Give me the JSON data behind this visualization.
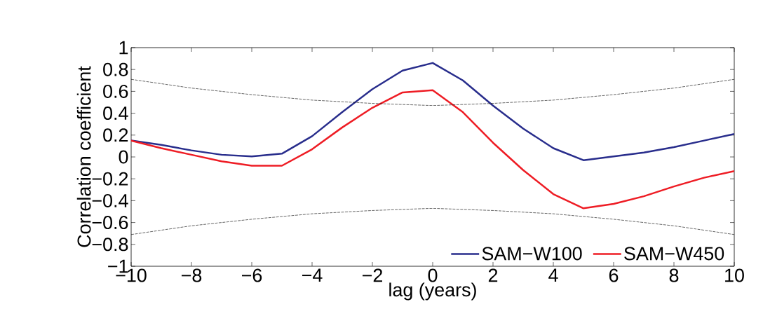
{
  "chart_data": {
    "type": "line",
    "xlabel": "lag (years)",
    "ylabel": "Correlation coefficient",
    "x": [
      -10,
      -9,
      -8,
      -7,
      -6,
      -5,
      -4,
      -3,
      -2,
      -1,
      0,
      1,
      2,
      3,
      4,
      5,
      6,
      7,
      8,
      9,
      10
    ],
    "series": [
      {
        "name": "SAM−W100",
        "color": "#282d8c",
        "values": [
          0.15,
          0.11,
          0.06,
          0.02,
          0.005,
          0.03,
          0.19,
          0.41,
          0.62,
          0.79,
          0.86,
          0.7,
          0.47,
          0.26,
          0.08,
          -0.03,
          0.005,
          0.04,
          0.09,
          0.15,
          0.21
        ]
      },
      {
        "name": "SAM−W450",
        "color": "#ee1c24",
        "values": [
          0.15,
          0.08,
          0.02,
          -0.04,
          -0.08,
          -0.08,
          0.07,
          0.27,
          0.45,
          0.59,
          0.61,
          0.41,
          0.13,
          -0.12,
          -0.34,
          -0.47,
          -0.43,
          -0.36,
          -0.27,
          -0.19,
          -0.13
        ]
      },
      {
        "color": "#000000",
        "line_style": "dashed",
        "x": [
          -10,
          -8,
          -6,
          -4,
          -2,
          0,
          2,
          4,
          6,
          8,
          10
        ],
        "values": [
          0.71,
          0.63,
          0.57,
          0.52,
          0.49,
          0.47,
          0.49,
          0.52,
          0.57,
          0.63,
          0.71
        ]
      },
      {
        "color": "#000000",
        "line_style": "dashed",
        "x": [
          -10,
          -8,
          -6,
          -4,
          -2,
          0,
          2,
          4,
          6,
          8,
          10
        ],
        "values": [
          -0.71,
          -0.63,
          -0.57,
          -0.52,
          -0.49,
          -0.47,
          -0.49,
          -0.52,
          -0.57,
          -0.63,
          -0.71
        ]
      }
    ],
    "xlim": [
      -10,
      10
    ],
    "ylim": [
      -1,
      1
    ],
    "xticks": [
      {
        "value": -10,
        "label": "−10"
      },
      {
        "value": -8,
        "label": "−8"
      },
      {
        "value": -6,
        "label": "−6"
      },
      {
        "value": -4,
        "label": "−4"
      },
      {
        "value": -2,
        "label": "−2"
      },
      0,
      2,
      4,
      6,
      8,
      10
    ],
    "yticks": [
      {
        "value": -1,
        "label": "−1"
      },
      {
        "value": -0.8,
        "label": "−0.8"
      },
      {
        "value": -0.6,
        "label": "−0.6"
      },
      {
        "value": -0.4,
        "label": "−0.4"
      },
      {
        "value": -0.2,
        "label": "−0.2"
      },
      0,
      0.2,
      0.4,
      0.6,
      0.8,
      1
    ],
    "grid": false,
    "legend": "bottom right",
    "marker": "none",
    "line_style": "solid"
  }
}
